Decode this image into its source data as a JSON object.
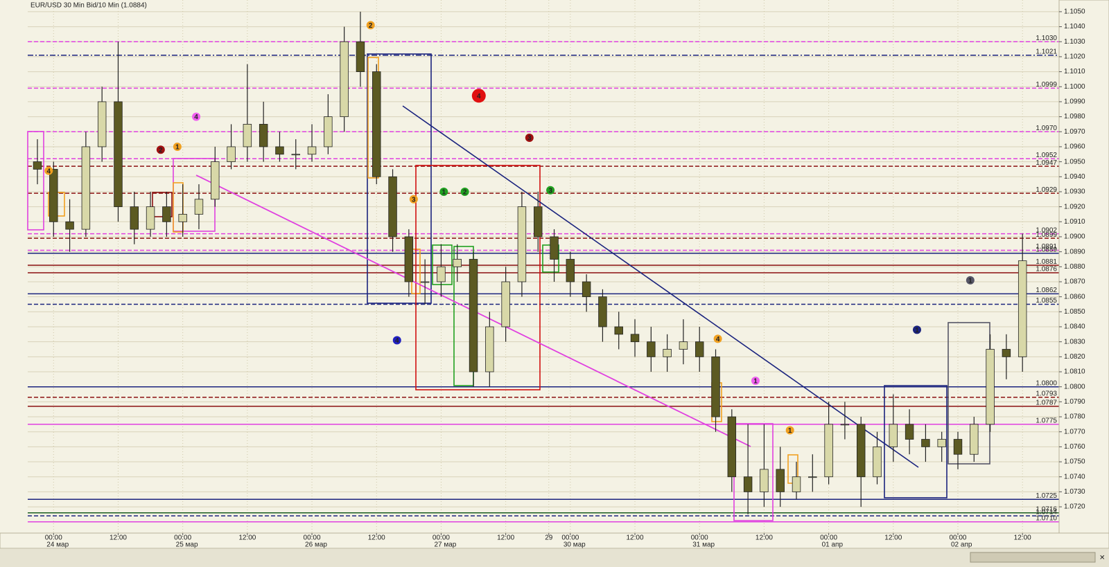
{
  "chart_data": {
    "type": "candlestick",
    "title": "EUR/USD 30 Min Bid/10 Min (1.0884)",
    "xlim": [
      -4.8,
      186.8
    ],
    "ylim": [
      1.07025,
      1.10578
    ],
    "grid": true,
    "up_color": "#d8d8a8",
    "down_color": "#5c5a22",
    "wick_color": "#222222",
    "x": [
      -3,
      0,
      3,
      6,
      9,
      12,
      15,
      18,
      21,
      24,
      27,
      30,
      33,
      36,
      39,
      42,
      45,
      48,
      51,
      54,
      57,
      60,
      63,
      66,
      69,
      72,
      75,
      78,
      81,
      84,
      87,
      90,
      93,
      96,
      99,
      102,
      105,
      108,
      111,
      114,
      117,
      120,
      123,
      126,
      129,
      132,
      135,
      138,
      141,
      144,
      147,
      150,
      153,
      156,
      159,
      162,
      165,
      168,
      171,
      174,
      177,
      180
    ],
    "open": [
      1.095,
      1.0945,
      1.091,
      1.0905,
      1.096,
      1.099,
      1.092,
      1.0905,
      1.092,
      1.091,
      1.0915,
      1.0925,
      1.095,
      1.096,
      1.0975,
      1.096,
      1.0955,
      1.0955,
      1.096,
      1.098,
      1.103,
      1.101,
      1.094,
      1.09,
      1.087,
      1.087,
      1.088,
      1.0885,
      1.081,
      1.084,
      1.087,
      1.092,
      1.09,
      1.0885,
      1.087,
      1.086,
      1.084,
      1.0835,
      1.083,
      1.082,
      1.0825,
      1.083,
      1.082,
      1.078,
      1.074,
      1.073,
      1.0745,
      1.073,
      1.074,
      1.074,
      1.0775,
      1.0775,
      1.074,
      1.076,
      1.0775,
      1.0765,
      1.076,
      1.0765,
      1.0755,
      1.0775,
      1.0825,
      1.082
    ],
    "high": [
      1.0965,
      1.095,
      1.0925,
      1.097,
      1.1,
      1.103,
      1.093,
      1.093,
      1.093,
      1.0935,
      1.0935,
      1.096,
      1.0975,
      1.1015,
      1.099,
      1.097,
      1.0965,
      1.0975,
      1.0995,
      1.104,
      1.105,
      1.1015,
      1.0945,
      1.0905,
      1.0885,
      1.0895,
      1.0895,
      1.089,
      1.085,
      1.088,
      1.093,
      1.093,
      1.0905,
      1.089,
      1.0875,
      1.0865,
      1.085,
      1.0845,
      1.084,
      1.0835,
      1.0845,
      1.084,
      1.0825,
      1.0785,
      1.0775,
      1.0775,
      1.076,
      1.075,
      1.0755,
      1.079,
      1.079,
      1.078,
      1.077,
      1.0795,
      1.0785,
      1.0775,
      1.077,
      1.077,
      1.078,
      1.0835,
      1.0835,
      1.0902
    ],
    "low": [
      1.0935,
      1.09,
      1.089,
      1.09,
      1.095,
      1.091,
      1.0895,
      1.09,
      1.09,
      1.09,
      1.0905,
      1.092,
      1.0945,
      1.095,
      1.095,
      1.095,
      1.0945,
      1.095,
      1.0955,
      1.097,
      1.1,
      1.0935,
      1.089,
      1.086,
      1.0855,
      1.086,
      1.087,
      1.08,
      1.08,
      1.083,
      1.086,
      1.089,
      1.087,
      1.086,
      1.085,
      1.083,
      1.0825,
      1.082,
      1.081,
      1.081,
      1.0815,
      1.081,
      1.077,
      1.073,
      1.0715,
      1.072,
      1.072,
      1.0725,
      1.073,
      1.0735,
      1.0765,
      1.072,
      1.0735,
      1.075,
      1.0755,
      1.075,
      1.075,
      1.0745,
      1.075,
      1.077,
      1.0805,
      1.081
    ],
    "close": [
      1.0945,
      1.091,
      1.0905,
      1.096,
      1.099,
      1.092,
      1.0905,
      1.092,
      1.091,
      1.0915,
      1.0925,
      1.095,
      1.096,
      1.0975,
      1.096,
      1.0955,
      1.0955,
      1.096,
      1.098,
      1.103,
      1.101,
      1.094,
      1.09,
      1.087,
      1.087,
      1.088,
      1.0885,
      1.081,
      1.084,
      1.087,
      1.092,
      1.09,
      1.0885,
      1.087,
      1.086,
      1.084,
      1.0835,
      1.083,
      1.082,
      1.0825,
      1.083,
      1.082,
      1.078,
      1.074,
      1.073,
      1.0745,
      1.073,
      1.074,
      1.074,
      1.0775,
      1.0775,
      1.074,
      1.076,
      1.0775,
      1.0765,
      1.076,
      1.0765,
      1.0755,
      1.0775,
      1.0825,
      1.082,
      1.0884
    ],
    "yticks": [
      {
        "value": 1.072,
        "label": "1.0720"
      },
      {
        "value": 1.073,
        "label": "1.0730"
      },
      {
        "value": 1.074,
        "label": "1.0740"
      },
      {
        "value": 1.075,
        "label": "1.0750"
      },
      {
        "value": 1.076,
        "label": "1.0760"
      },
      {
        "value": 1.077,
        "label": "1.0770"
      },
      {
        "value": 1.078,
        "label": "1.0780"
      },
      {
        "value": 1.079,
        "label": "1.0790"
      },
      {
        "value": 1.08,
        "label": "1.0800"
      },
      {
        "value": 1.081,
        "label": "1.0810"
      },
      {
        "value": 1.082,
        "label": "1.0820"
      },
      {
        "value": 1.083,
        "label": "1.0830"
      },
      {
        "value": 1.084,
        "label": "1.0840"
      },
      {
        "value": 1.085,
        "label": "1.0850"
      },
      {
        "value": 1.086,
        "label": "1.0860"
      },
      {
        "value": 1.087,
        "label": "1.0870"
      },
      {
        "value": 1.088,
        "label": "1.0880"
      },
      {
        "value": 1.089,
        "label": "1.0890"
      },
      {
        "value": 1.09,
        "label": "1.0900"
      },
      {
        "value": 1.091,
        "label": "1.0910"
      },
      {
        "value": 1.092,
        "label": "1.0920"
      },
      {
        "value": 1.093,
        "label": "1.0930"
      },
      {
        "value": 1.094,
        "label": "1.0940"
      },
      {
        "value": 1.095,
        "label": "1.0950"
      },
      {
        "value": 1.096,
        "label": "1.0960"
      },
      {
        "value": 1.097,
        "label": "1.0970"
      },
      {
        "value": 1.098,
        "label": "1.0980"
      },
      {
        "value": 1.099,
        "label": "1.0990"
      },
      {
        "value": 1.1,
        "label": "1.1000"
      },
      {
        "value": 1.101,
        "label": "1.1010"
      },
      {
        "value": 1.102,
        "label": "1.1020"
      },
      {
        "value": 1.103,
        "label": "1.1030"
      },
      {
        "value": 1.104,
        "label": "1.1040"
      },
      {
        "value": 1.105,
        "label": "1.1050"
      }
    ],
    "xticks": [
      {
        "value": 0,
        "label": "00:00"
      },
      {
        "value": 12,
        "label": "12:00"
      },
      {
        "value": 24,
        "label": "00:00"
      },
      {
        "value": 36,
        "label": "12:00"
      },
      {
        "value": 48,
        "label": "00:00"
      },
      {
        "value": 60,
        "label": "12:00"
      },
      {
        "value": 72,
        "label": "00:00"
      },
      {
        "value": 84,
        "label": "12:00"
      },
      {
        "value": 92,
        "label": "29"
      },
      {
        "value": 96,
        "label": "00:00"
      },
      {
        "value": 108,
        "label": "12:00"
      },
      {
        "value": 120,
        "label": "00:00"
      },
      {
        "value": 132,
        "label": "12:00"
      },
      {
        "value": 144,
        "label": "00:00"
      },
      {
        "value": 156,
        "label": "12:00"
      },
      {
        "value": 168,
        "label": "00:00"
      },
      {
        "value": 180,
        "label": "12:00"
      }
    ],
    "dates": [
      {
        "value": 0,
        "label": "24 мар"
      },
      {
        "value": 24,
        "label": "25 мар"
      },
      {
        "value": 48,
        "label": "26 мар"
      },
      {
        "value": 72,
        "label": "27 мар"
      },
      {
        "value": 96,
        "label": "30 мар"
      },
      {
        "value": 120,
        "label": "31 мар"
      },
      {
        "value": 144,
        "label": "01 апр"
      },
      {
        "value": 168,
        "label": "02 апр"
      }
    ],
    "levels": [
      {
        "value": 1.103,
        "label": "1.1030",
        "color": "#e040e0",
        "style": "dash"
      },
      {
        "value": 1.1021,
        "label": "1.1021",
        "color": "#1a237e",
        "style": "dashdot"
      },
      {
        "value": 1.0999,
        "label": "1.0999",
        "color": "#e040e0",
        "style": "dash"
      },
      {
        "value": 1.097,
        "label": "1.0970",
        "color": "#e040e0",
        "style": "dash"
      },
      {
        "value": 1.0952,
        "label": "1.0952",
        "color": "#e040e0",
        "style": "dash"
      },
      {
        "value": 1.0947,
        "label": "1.0947",
        "color": "#8b1010",
        "style": "dash"
      },
      {
        "value": 1.0929,
        "label": "1.0929",
        "color": "#8b1010",
        "style": "dash"
      },
      {
        "value": 1.0902,
        "label": "1.0902",
        "color": "#e040e0",
        "style": "dash"
      },
      {
        "value": 1.0899,
        "label": "1.0899",
        "color": "#8b1010",
        "style": "dash"
      },
      {
        "value": 1.0891,
        "label": "1.0891",
        "color": "#e040e0",
        "style": "dash"
      },
      {
        "value": 1.0889,
        "label": "1.0889",
        "color": "#1a237e",
        "style": "solid"
      },
      {
        "value": 1.0881,
        "label": "1.0881",
        "color": "#8b1010",
        "style": "solid"
      },
      {
        "value": 1.0876,
        "label": "1.0876",
        "color": "#8b1010",
        "style": "solid"
      },
      {
        "value": 1.0862,
        "label": "1.0862",
        "color": "#1a237e",
        "style": "solid"
      },
      {
        "value": 1.0855,
        "label": "1.0855",
        "color": "#1a237e",
        "style": "dash"
      },
      {
        "value": 1.08,
        "label": "1.0800",
        "color": "#1a237e",
        "style": "solid"
      },
      {
        "value": 1.0793,
        "label": "1.0793",
        "color": "#8b1010",
        "style": "dash"
      },
      {
        "value": 1.0787,
        "label": "1.0787",
        "color": "#8b1010",
        "style": "solid"
      },
      {
        "value": 1.0775,
        "label": "1.0775",
        "color": "#e040e0",
        "style": "solid"
      },
      {
        "value": 1.0725,
        "label": "1.0725",
        "color": "#1a237e",
        "style": "solid"
      },
      {
        "value": 1.0716,
        "label": "1.0716",
        "color": "#1b5e20",
        "style": "solid"
      },
      {
        "value": 1.0714,
        "label": "1.0714",
        "color": "#1a237e",
        "style": "dash"
      },
      {
        "value": 1.071,
        "label": "1.0710",
        "color": "#e040e0",
        "style": "solid"
      }
    ],
    "markers": [
      {
        "label": "4",
        "color": "#f0a020",
        "x": -0.9,
        "y": 1.0944
      },
      {
        "label": "2",
        "color": "#a01010",
        "x": 19.9,
        "y": 1.0958
      },
      {
        "label": "1",
        "color": "#f0a020",
        "x": 23.0,
        "y": 1.096
      },
      {
        "label": "4",
        "color": "#f060f0",
        "x": 26.5,
        "y": 1.098
      },
      {
        "label": "2",
        "color": "#f0a020",
        "x": 58.9,
        "y": 1.1041
      },
      {
        "label": "4",
        "color": "#e01010",
        "x": 79.0,
        "y": 1.0994,
        "size": "large"
      },
      {
        "label": "3",
        "color": "#a01010",
        "x": 88.4,
        "y": 1.0966
      },
      {
        "label": "3",
        "color": "#f0a020",
        "x": 66.9,
        "y": 1.0925
      },
      {
        "label": "1",
        "color": "#20a020",
        "x": 72.5,
        "y": 1.093
      },
      {
        "label": "2",
        "color": "#20a020",
        "x": 76.4,
        "y": 1.093
      },
      {
        "label": "3",
        "color": "#20a020",
        "x": 92.3,
        "y": 1.0931
      },
      {
        "label": "4",
        "color": "#2020c0",
        "x": 63.8,
        "y": 1.0831
      },
      {
        "label": "4",
        "color": "#f0a020",
        "x": 123.4,
        "y": 1.0832
      },
      {
        "label": "1",
        "color": "#f060f0",
        "x": 130.4,
        "y": 1.0804
      },
      {
        "label": "1",
        "color": "#f0a020",
        "x": 136.8,
        "y": 1.0771
      },
      {
        "label": "1",
        "color": "#1a237e",
        "x": 160.4,
        "y": 1.0838
      },
      {
        "label": "1",
        "color": "#555566",
        "x": 170.3,
        "y": 1.0871
      }
    ]
  }
}
